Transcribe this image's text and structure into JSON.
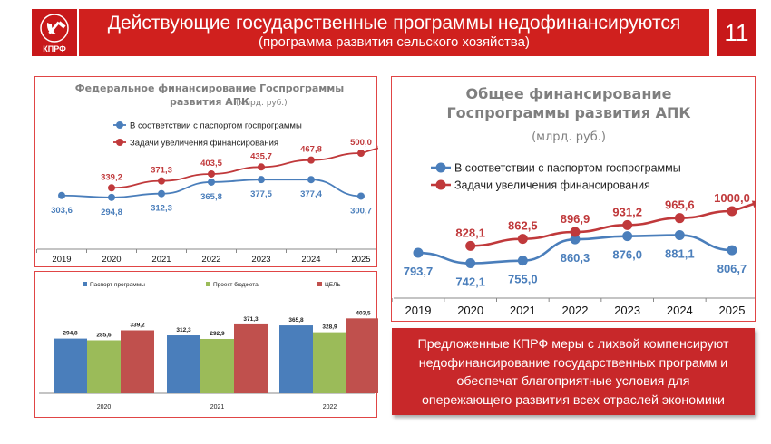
{
  "header": {
    "title": "Действующие государственные программы недофинансируются",
    "subtitle": "(программа развития сельского хозяйства)",
    "page_number": "11",
    "logo_text": "КПРФ",
    "logo_icon": "hammer-sickle-icon",
    "accent_color": "#d0201e"
  },
  "note": {
    "lines": [
      "Предложенные КПРФ меры с лихвой компенсируют",
      "недофинансирование государственных программ и",
      "обеспечат благоприятные условия для",
      "опережающего развития всех отраслей экономики"
    ]
  },
  "chart_data": [
    {
      "type": "line",
      "title": "Федеральное финансирование Госпрограммы развития АПК",
      "title_lines": [
        "Федеральное финансирование Госпрограммы",
        "развития АПК"
      ],
      "title_unit": "(млрд. руб.)",
      "x": [
        "2019",
        "2020",
        "2021",
        "2022",
        "2023",
        "2024",
        "2025"
      ],
      "series": [
        {
          "name": "В соответствии с паспортом госпрограммы",
          "color": "#4a7ebb",
          "values": [
            303.6,
            294.8,
            312.3,
            365.8,
            377.5,
            377.4,
            300.7
          ],
          "labels": [
            "303,6",
            "294,8",
            "312,3",
            "365,8",
            "377,5",
            "377,4",
            "300,7"
          ]
        },
        {
          "name": "Задачи увеличения финансирования",
          "color": "#c0393b",
          "arrow": true,
          "values": [
            null,
            339.2,
            371.3,
            403.5,
            435.7,
            467.8,
            500.0
          ],
          "labels": [
            "",
            "339,2",
            "371,3",
            "403,5",
            "435,7",
            "467,8",
            "500,0"
          ]
        }
      ],
      "legend": "top-left",
      "grid": false
    },
    {
      "type": "line",
      "title": "Общее финансирование Госпрограммы развития АПК",
      "title_lines": [
        "Общее финансирование",
        "Госпрограммы развития АПК"
      ],
      "title_unit": "(млрд. руб.)",
      "x": [
        "2019",
        "2020",
        "2021",
        "2022",
        "2023",
        "2024",
        "2025"
      ],
      "series": [
        {
          "name": "В соответствии с паспортом госпрограммы",
          "color": "#4a7ebb",
          "values": [
            793.7,
            742.1,
            755.0,
            860.3,
            876.0,
            881.1,
            806.7
          ],
          "labels": [
            "793,7",
            "742,1",
            "755,0",
            "860,3",
            "876,0",
            "881,1",
            "806,7"
          ]
        },
        {
          "name": "Задачи увеличения финансирования",
          "color": "#c0393b",
          "arrow": true,
          "values": [
            null,
            828.1,
            862.5,
            896.9,
            931.2,
            965.6,
            1000.0
          ],
          "labels": [
            "",
            "828,1",
            "862,5",
            "896,9",
            "931,2",
            "965,6",
            "1000,0"
          ]
        }
      ],
      "legend": "top-left",
      "grid": false
    },
    {
      "type": "bar",
      "categories": [
        "2020",
        "2021",
        "2022"
      ],
      "series": [
        {
          "name": "Паспорт программы",
          "color": "#4a7ebb",
          "values": [
            294.8,
            312.3,
            365.8
          ],
          "labels": [
            "294,8",
            "312,3",
            "365,8"
          ]
        },
        {
          "name": "Проект бюджета",
          "color": "#9bbb59",
          "values": [
            285.6,
            292.9,
            328.9
          ],
          "labels": [
            "285,6",
            "292,9",
            "328,9"
          ]
        },
        {
          "name": "ЦЕЛЬ",
          "color": "#c0504d",
          "values": [
            339.2,
            371.3,
            403.5
          ],
          "labels": [
            "339,2",
            "371,3",
            "403,5"
          ]
        }
      ],
      "legend": "top",
      "grid": false
    }
  ]
}
